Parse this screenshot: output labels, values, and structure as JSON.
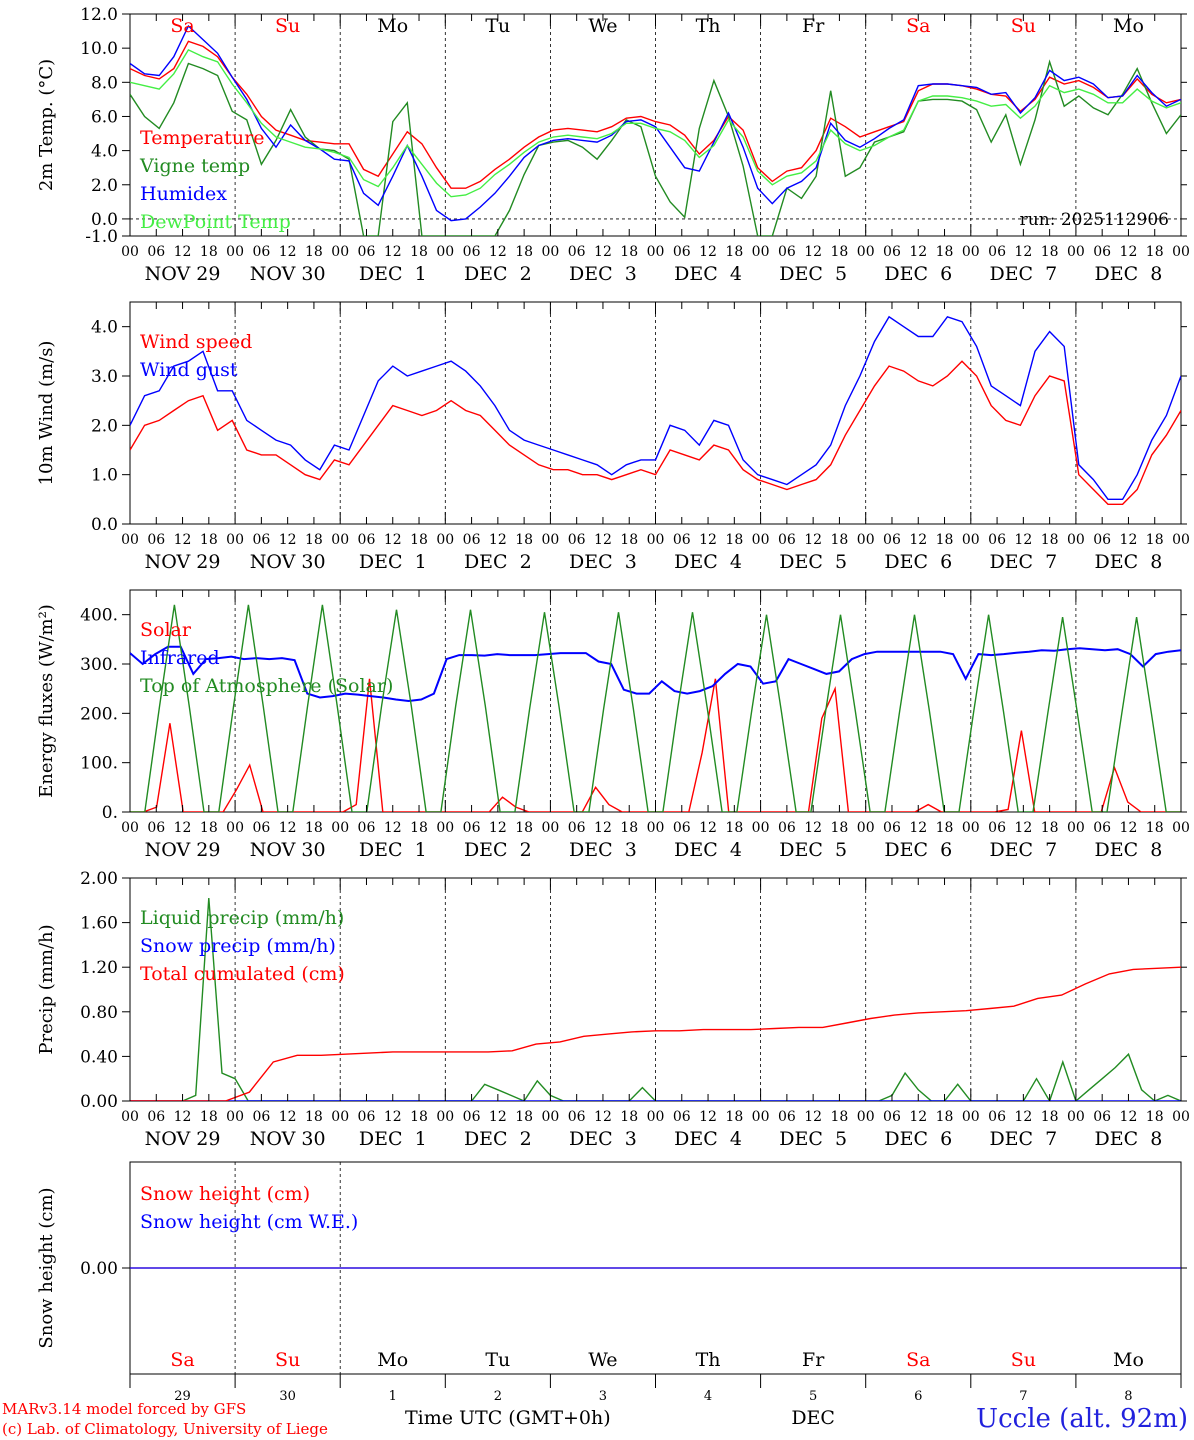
{
  "chart_data": [
    {
      "type": "line",
      "ylabel": "2m Temp. (°C)",
      "ylim": [
        -1.0,
        12.0
      ],
      "yticks": [
        "-1.0",
        "0.0",
        "2.0",
        "4.0",
        "6.0",
        "8.0",
        "10.0",
        "12.0"
      ],
      "run_label": "run: 2025112906",
      "series": [
        {
          "name": "Temperature",
          "color": "#ff0000",
          "values": [
            8.8,
            8.4,
            8.2,
            8.8,
            10.4,
            10.1,
            9.5,
            8.3,
            7.3,
            6.0,
            5.2,
            4.9,
            4.6,
            4.5,
            4.4,
            4.4,
            2.9,
            2.5,
            3.8,
            5.1,
            4.4,
            3.0,
            1.8,
            1.8,
            2.2,
            2.9,
            3.5,
            4.2,
            4.8,
            5.2,
            5.3,
            5.2,
            5.1,
            5.4,
            5.9,
            6.0,
            5.7,
            5.5,
            4.9,
            3.8,
            4.6,
            6.0,
            5.2,
            3.0,
            2.2,
            2.8,
            3.0,
            4.0,
            5.9,
            5.4,
            4.8,
            5.1,
            5.4,
            5.7,
            7.5,
            7.9,
            7.9,
            7.8,
            7.6,
            7.3,
            7.2,
            6.3,
            7.0,
            8.3,
            7.9,
            8.1,
            7.7,
            7.1,
            7.2,
            8.2,
            7.3,
            6.8,
            7.0
          ]
        },
        {
          "name": "Vigne temp",
          "color": "#228b22",
          "values": [
            7.3,
            6.0,
            5.3,
            6.8,
            9.1,
            8.8,
            8.4,
            6.3,
            5.8,
            3.2,
            4.6,
            6.4,
            4.8,
            4.1,
            4.0,
            3.5,
            -1.0,
            -1.0,
            5.7,
            6.8,
            -1.0,
            -1.0,
            -1.0,
            -1.0,
            -1.0,
            -1.0,
            0.5,
            2.6,
            4.3,
            4.5,
            4.6,
            4.2,
            3.5,
            4.6,
            5.8,
            5.4,
            2.5,
            1.0,
            0.1,
            5.3,
            8.1,
            6.0,
            3.1,
            -1.0,
            -1.0,
            1.8,
            1.2,
            2.5,
            7.5,
            2.5,
            3.0,
            4.5,
            4.8,
            5.1,
            6.9,
            7.0,
            7.0,
            6.9,
            6.4,
            4.5,
            6.1,
            3.2,
            5.8,
            9.2,
            6.6,
            7.2,
            6.5,
            6.1,
            7.3,
            8.8,
            6.8,
            5.0,
            6.1
          ]
        },
        {
          "name": "Humidex",
          "color": "#0000ff",
          "values": [
            9.1,
            8.5,
            8.4,
            9.5,
            11.3,
            10.5,
            9.7,
            8.3,
            7.0,
            5.3,
            4.2,
            5.5,
            4.6,
            4.1,
            3.5,
            3.4,
            1.5,
            0.8,
            2.5,
            4.3,
            2.5,
            0.5,
            -0.1,
            0.0,
            0.7,
            1.5,
            2.5,
            3.6,
            4.3,
            4.6,
            4.7,
            4.6,
            4.5,
            4.9,
            5.7,
            5.8,
            5.4,
            4.2,
            3.0,
            2.8,
            4.5,
            6.2,
            4.2,
            1.8,
            0.9,
            1.8,
            2.2,
            3.0,
            5.6,
            4.6,
            4.2,
            4.7,
            5.3,
            5.8,
            7.8,
            7.9,
            7.9,
            7.8,
            7.7,
            7.3,
            7.4,
            6.2,
            7.1,
            8.7,
            8.1,
            8.3,
            7.9,
            7.1,
            7.2,
            8.4,
            7.4,
            6.6,
            7.0
          ]
        },
        {
          "name": "DewPoint Temp",
          "color": "#44ee44",
          "values": [
            8.0,
            7.8,
            7.6,
            8.5,
            9.9,
            9.5,
            9.2,
            7.9,
            6.8,
            5.6,
            4.8,
            4.5,
            4.2,
            4.1,
            3.9,
            3.6,
            2.3,
            1.9,
            3.0,
            4.3,
            3.2,
            2.1,
            1.3,
            1.4,
            1.8,
            2.6,
            3.2,
            3.9,
            4.5,
            4.8,
            4.9,
            4.8,
            4.7,
            5.0,
            5.6,
            5.6,
            5.3,
            5.1,
            4.6,
            3.6,
            4.3,
            5.8,
            4.8,
            2.8,
            2.0,
            2.5,
            2.7,
            3.4,
            5.2,
            4.4,
            4.0,
            4.3,
            4.8,
            5.2,
            6.9,
            7.2,
            7.2,
            7.1,
            6.9,
            6.6,
            6.7,
            5.9,
            6.6,
            7.8,
            7.4,
            7.6,
            7.3,
            6.8,
            6.8,
            7.6,
            6.9,
            6.5,
            6.8
          ]
        }
      ]
    },
    {
      "type": "line",
      "ylabel": "10m Wind (m/s)",
      "ylim": [
        0.0,
        4.5
      ],
      "yticks": [
        "0.0",
        "1.0",
        "2.0",
        "3.0",
        "4.0"
      ],
      "series": [
        {
          "name": "Wind speed",
          "color": "#ff0000",
          "values": [
            1.5,
            2.0,
            2.1,
            2.3,
            2.5,
            2.6,
            1.9,
            2.1,
            1.5,
            1.4,
            1.4,
            1.2,
            1.0,
            0.9,
            1.3,
            1.2,
            1.6,
            2.0,
            2.4,
            2.3,
            2.2,
            2.3,
            2.5,
            2.3,
            2.2,
            1.9,
            1.6,
            1.4,
            1.2,
            1.1,
            1.1,
            1.0,
            1.0,
            0.9,
            1.0,
            1.1,
            1.0,
            1.5,
            1.4,
            1.3,
            1.6,
            1.5,
            1.1,
            0.9,
            0.8,
            0.7,
            0.8,
            0.9,
            1.2,
            1.8,
            2.3,
            2.8,
            3.2,
            3.1,
            2.9,
            2.8,
            3.0,
            3.3,
            3.0,
            2.4,
            2.1,
            2.0,
            2.6,
            3.0,
            2.9,
            1.0,
            0.7,
            0.4,
            0.4,
            0.7,
            1.4,
            1.8,
            2.3
          ]
        },
        {
          "name": "Wind gust",
          "color": "#0000ff",
          "values": [
            2.0,
            2.6,
            2.7,
            3.2,
            3.3,
            3.5,
            2.7,
            2.7,
            2.1,
            1.9,
            1.7,
            1.6,
            1.3,
            1.1,
            1.6,
            1.5,
            2.2,
            2.9,
            3.2,
            3.0,
            3.1,
            3.2,
            3.3,
            3.1,
            2.8,
            2.4,
            1.9,
            1.7,
            1.6,
            1.5,
            1.4,
            1.3,
            1.2,
            1.0,
            1.2,
            1.3,
            1.3,
            2.0,
            1.9,
            1.6,
            2.1,
            2.0,
            1.3,
            1.0,
            0.9,
            0.8,
            1.0,
            1.2,
            1.6,
            2.4,
            3.0,
            3.7,
            4.2,
            4.0,
            3.8,
            3.8,
            4.2,
            4.1,
            3.6,
            2.8,
            2.6,
            2.4,
            3.5,
            3.9,
            3.6,
            1.2,
            0.9,
            0.5,
            0.5,
            1.0,
            1.7,
            2.2,
            3.0
          ]
        }
      ]
    },
    {
      "type": "line",
      "ylabel": "Energy fluxes (W/m²)",
      "ylim": [
        0,
        450
      ],
      "yticks": [
        "0.",
        "100.",
        "200.",
        "300.",
        "400."
      ],
      "series": [
        {
          "name": "Solar",
          "color": "#ff0000",
          "values": [
            0,
            0,
            10,
            180,
            0,
            0,
            0,
            0,
            45,
            95,
            0,
            0,
            0,
            0,
            0,
            0,
            0,
            15,
            270,
            0,
            0,
            0,
            0,
            0,
            0,
            0,
            0,
            0,
            30,
            10,
            0,
            0,
            0,
            0,
            0,
            50,
            15,
            0,
            0,
            0,
            0,
            0,
            0,
            120,
            270,
            0,
            0,
            0,
            0,
            0,
            0,
            0,
            190,
            250,
            0,
            0,
            0,
            0,
            0,
            0,
            15,
            0,
            0,
            0,
            0,
            0,
            5,
            165,
            0,
            0,
            0,
            0,
            0,
            0,
            90,
            20,
            0,
            0,
            0,
            0
          ]
        },
        {
          "name": "Infrared",
          "color": "#0000ff",
          "values": [
            322,
            300,
            320,
            335,
            335,
            280,
            310,
            312,
            315,
            310,
            312,
            310,
            312,
            308,
            240,
            232,
            235,
            240,
            238,
            235,
            232,
            228,
            225,
            228,
            240,
            310,
            318,
            318,
            317,
            320,
            318,
            318,
            318,
            320,
            322,
            322,
            322,
            305,
            300,
            248,
            240,
            240,
            265,
            245,
            240,
            245,
            255,
            280,
            300,
            295,
            260,
            265,
            310,
            300,
            290,
            280,
            285,
            310,
            320,
            325,
            325,
            325,
            325,
            325,
            325,
            320,
            270,
            320,
            318,
            320,
            323,
            325,
            328,
            327,
            330,
            332,
            330,
            328,
            330,
            320,
            295,
            320,
            325,
            328
          ]
        },
        {
          "name": "Top of Atmosphere (Solar)",
          "color": "#228b22",
          "values": [
            0,
            0,
            215,
            420,
            215,
            0,
            0,
            215,
            420,
            215,
            0,
            0,
            215,
            420,
            215,
            0,
            0,
            215,
            410,
            215,
            0,
            0,
            215,
            410,
            215,
            0,
            0,
            210,
            405,
            210,
            0,
            0,
            210,
            405,
            210,
            0,
            0,
            210,
            405,
            210,
            0,
            0,
            205,
            400,
            205,
            0,
            0,
            205,
            400,
            205,
            0,
            0,
            205,
            400,
            205,
            0,
            0,
            205,
            400,
            205,
            0,
            0,
            200,
            395,
            200,
            0,
            0,
            200,
            395,
            200,
            0,
            0
          ]
        }
      ]
    },
    {
      "type": "line",
      "ylabel": "Precip (mm/h)",
      "ylim": [
        0.0,
        2.0
      ],
      "yticks": [
        "0.00",
        "0.40",
        "0.80",
        "1.20",
        "1.60",
        "2.00"
      ],
      "series": [
        {
          "name": "Liquid precip (mm/h)",
          "color": "#228b22",
          "values": [
            0,
            0,
            0,
            0,
            0,
            0.05,
            1.82,
            0.25,
            0.2,
            0,
            0,
            0,
            0,
            0,
            0,
            0,
            0,
            0,
            0,
            0,
            0,
            0,
            0,
            0,
            0,
            0,
            0,
            0.15,
            0.1,
            0.05,
            0,
            0.18,
            0.05,
            0,
            0,
            0,
            0,
            0,
            0,
            0.12,
            0,
            0,
            0,
            0,
            0,
            0,
            0,
            0,
            0,
            0,
            0,
            0,
            0,
            0,
            0,
            0,
            0,
            0,
            0.05,
            0.25,
            0.1,
            0,
            0,
            0.15,
            0,
            0,
            0,
            0,
            0,
            0.2,
            0,
            0.35,
            0,
            0.1,
            0.2,
            0.3,
            0.42,
            0.1,
            0,
            0.05,
            0
          ]
        },
        {
          "name": "Snow precip (mm/h)",
          "color": "#0000ff",
          "values": [
            0,
            0,
            0,
            0,
            0,
            0,
            0,
            0,
            0,
            0,
            0,
            0,
            0,
            0,
            0,
            0,
            0,
            0,
            0,
            0,
            0,
            0,
            0,
            0,
            0,
            0,
            0,
            0,
            0,
            0,
            0,
            0,
            0,
            0,
            0,
            0,
            0,
            0,
            0,
            0,
            0,
            0,
            0,
            0,
            0,
            0,
            0,
            0,
            0,
            0,
            0,
            0
          ]
        },
        {
          "name": "Total cumulated (cm)",
          "color": "#ff0000",
          "values": [
            0,
            0,
            0,
            0,
            0,
            0.08,
            0.35,
            0.41,
            0.41,
            0.42,
            0.43,
            0.44,
            0.44,
            0.44,
            0.44,
            0.44,
            0.45,
            0.51,
            0.53,
            0.58,
            0.6,
            0.62,
            0.63,
            0.63,
            0.64,
            0.64,
            0.64,
            0.65,
            0.66,
            0.66,
            0.7,
            0.74,
            0.77,
            0.79,
            0.8,
            0.81,
            0.83,
            0.85,
            0.92,
            0.95,
            1.05,
            1.14,
            1.18,
            1.19,
            1.2
          ]
        }
      ]
    },
    {
      "type": "line",
      "ylabel": "Snow height (cm)",
      "ylim": [
        -1.0,
        1.0
      ],
      "yticks": [
        "0.00"
      ],
      "series": [
        {
          "name": "Snow height (cm)",
          "color": "#ff0000",
          "values": [
            0,
            0,
            0,
            0,
            0,
            0,
            0,
            0,
            0,
            0,
            0,
            0
          ]
        },
        {
          "name": "Snow height (cm W.E.)",
          "color": "#0000ff",
          "values": [
            0,
            0,
            0,
            0,
            0,
            0,
            0,
            0,
            0,
            0,
            0,
            0
          ]
        }
      ]
    }
  ],
  "x_axis": {
    "hour_ticks": [
      "00",
      "06",
      "12",
      "18"
    ],
    "last_tick": "00",
    "dates": [
      "NOV 29",
      "NOV 30",
      "DEC  1",
      "DEC  2",
      "DEC  3",
      "DEC  4",
      "DEC  5",
      "DEC  6",
      "DEC  7",
      "DEC  8"
    ],
    "weekdays": [
      "Sa",
      "Su",
      "Mo",
      "Tu",
      "We",
      "Th",
      "Fr",
      "Sa",
      "Su",
      "Mo"
    ],
    "weekday_colors": [
      "#ff0000",
      "#ff0000",
      "#000000",
      "#000000",
      "#000000",
      "#000000",
      "#000000",
      "#ff0000",
      "#ff0000",
      "#000000"
    ],
    "day_numbers": [
      "29",
      "30",
      "1",
      "2",
      "3",
      "4",
      "5",
      "6",
      "7",
      "8"
    ],
    "month_label": "DEC",
    "xlabel": "Time UTC (GMT+0h)"
  },
  "footer": {
    "credit_line1": "MARv3.14 model forced by GFS",
    "credit_line2": "(c) Lab. of Climatology, University of Liege",
    "station": "Uccle (alt. 92m)"
  }
}
